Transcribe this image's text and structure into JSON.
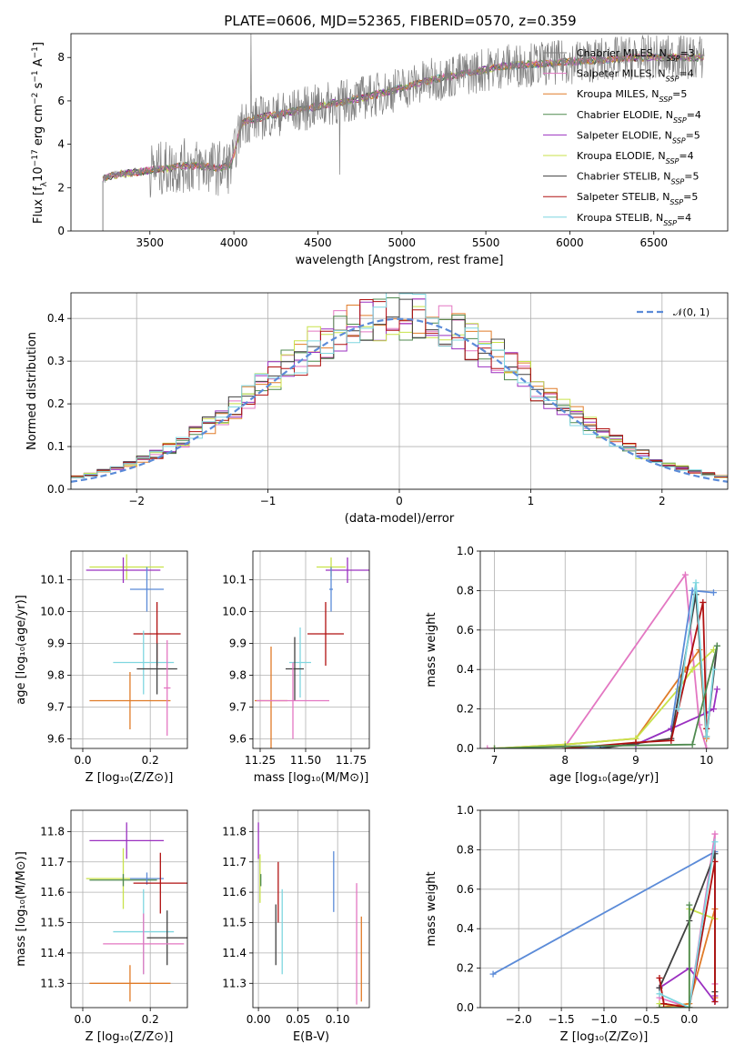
{
  "title": "PLATE=0606, MJD=52365, FIBERID=0570, z=0.359",
  "models": [
    {
      "name": "Chabrier MILES, N_SSP=3",
      "label": "Chabrier MILES, N",
      "sub": "SSP",
      "suffix": "=3",
      "color": "#808080"
    },
    {
      "name": "Salpeter MILES, N_SSP=4",
      "label": "Salpeter MILES, N",
      "sub": "SSP",
      "suffix": "=4",
      "color": "#e377c2"
    },
    {
      "name": "Kroupa MILES, N_SSP=5",
      "label": "Kroupa MILES, N",
      "sub": "SSP",
      "suffix": "=5",
      "color": "#e07b28"
    },
    {
      "name": "Chabrier ELODIE, N_SSP=4",
      "label": "Chabrier ELODIE, N",
      "sub": "SSP",
      "suffix": "=4",
      "color": "#4f8a4f"
    },
    {
      "name": "Salpeter ELODIE, N_SSP=5",
      "label": "Salpeter ELODIE, N",
      "sub": "SSP",
      "suffix": "=5",
      "color": "#9b30c0"
    },
    {
      "name": "Kroupa ELODIE, N_SSP=4",
      "label": "Kroupa ELODIE, N",
      "sub": "SSP",
      "suffix": "=4",
      "color": "#c8e24a"
    },
    {
      "name": "Chabrier STELIB, N_SSP=5",
      "label": "Chabrier STELIB, N",
      "sub": "SSP",
      "suffix": "=5",
      "color": "#404040"
    },
    {
      "name": "Salpeter STELIB, N_SSP=5",
      "label": "Salpeter STELIB, N",
      "sub": "SSP",
      "suffix": "=5",
      "color": "#b01010"
    },
    {
      "name": "Kroupa STELIB, N_SSP=4",
      "label": "Kroupa STELIB, N",
      "sub": "SSP",
      "suffix": "=4",
      "color": "#7fd6e0"
    }
  ],
  "chart_data": [
    {
      "id": "spectrum",
      "type": "line",
      "xlabel": "wavelength [Angstrom, rest frame]",
      "ylabel_pre": "Flux [f",
      "ylabel_sub": "λ",
      "ylabel_mid": "10",
      "ylabel_sup1": "−17",
      "ylabel_mid2": " erg cm",
      "ylabel_sup2": "−2",
      "ylabel_mid3": " s",
      "ylabel_sup3": "−1",
      "ylabel_mid4": " A",
      "ylabel_sup4": "−1",
      "ylabel_end": "]",
      "xlim": [
        3030,
        6940
      ],
      "ylim": [
        0,
        9.1
      ],
      "xticks": [
        3500,
        4000,
        4500,
        5000,
        5500,
        6000,
        6500
      ],
      "yticks": [
        0,
        2,
        4,
        6,
        8
      ],
      "continuum_x": [
        3220,
        3300,
        3400,
        3500,
        3600,
        3700,
        3800,
        3900,
        3980,
        4050,
        4200,
        4400,
        4600,
        4800,
        5000,
        5200,
        5400,
        5600,
        5800,
        6000,
        6200,
        6400,
        6600,
        6800
      ],
      "continuum_y": [
        2.4,
        2.6,
        2.7,
        2.8,
        2.9,
        3.0,
        3.0,
        2.9,
        3.0,
        5.0,
        5.3,
        5.6,
        5.9,
        6.2,
        6.6,
        7.0,
        7.3,
        7.6,
        7.7,
        7.8,
        7.9,
        8.0,
        8.0,
        8.0
      ]
    },
    {
      "id": "residuals",
      "type": "histogram",
      "xlabel": "(data-model)/error",
      "ylabel": "Normed distribution",
      "xlim": [
        -2.5,
        2.5
      ],
      "ylim": [
        0,
        0.46
      ],
      "xticks": [
        -2,
        -1,
        0,
        1,
        2
      ],
      "xticklabels": [
        "−2",
        "−1",
        "0",
        "1",
        "2"
      ],
      "yticks": [
        0.0,
        0.1,
        0.2,
        0.3,
        0.4
      ],
      "yticklabels": [
        "0.0",
        "0.1",
        "0.2",
        "0.3",
        "0.4"
      ],
      "legend": "𝒩(0, 1)",
      "gaussian_color": "#5b8bd8"
    },
    {
      "id": "age_vs_Z",
      "type": "errorbar",
      "xlabel": "Z [log₁₀(Z/Z⊙)]",
      "ylabel": "age  [log₁₀(age/yr)]",
      "xlim": [
        -0.035,
        0.31
      ],
      "ylim": [
        9.57,
        10.19
      ],
      "xticks": [
        0.0,
        0.2
      ],
      "yticks": [
        9.6,
        9.7,
        9.8,
        9.9,
        10.0,
        10.1
      ],
      "points": [
        {
          "x": 0.13,
          "xerr": 0.11,
          "y": 10.14,
          "yerr": 0.04,
          "color": "#c8e24a"
        },
        {
          "x": 0.12,
          "xerr": 0.11,
          "y": 10.13,
          "yerr": 0.04,
          "color": "#9b30c0"
        },
        {
          "x": 0.19,
          "xerr": 0.05,
          "y": 10.07,
          "yerr": 0.07,
          "color": "#5b8bd8"
        },
        {
          "x": 0.22,
          "xerr": 0.07,
          "y": 9.93,
          "yerr": 0.1,
          "color": "#b01010"
        },
        {
          "x": 0.18,
          "xerr": 0.09,
          "y": 9.84,
          "yerr": 0.1,
          "color": "#7fd6e0"
        },
        {
          "x": 0.22,
          "xerr": 0.06,
          "y": 9.82,
          "yerr": 0.08,
          "color": "#404040"
        },
        {
          "x": 0.14,
          "xerr": 0.12,
          "y": 9.72,
          "yerr": 0.09,
          "color": "#e07b28"
        },
        {
          "x": 0.25,
          "xerr": 0.01,
          "y": 9.76,
          "yerr": 0.15,
          "color": "#e377c2"
        }
      ]
    },
    {
      "id": "age_vs_mass",
      "type": "errorbar",
      "xlabel": "mass [log₁₀(M/M⊙)]",
      "xlim": [
        11.21,
        11.85
      ],
      "ylim": [
        9.57,
        10.19
      ],
      "xticks": [
        11.25,
        11.5,
        11.75
      ],
      "yticks": [
        9.6,
        9.7,
        9.8,
        9.9,
        10.0,
        10.1
      ],
      "points": [
        {
          "x": 11.64,
          "xerr": 0.08,
          "y": 10.14,
          "yerr": 0.03,
          "color": "#c8e24a"
        },
        {
          "x": 11.73,
          "xerr": 0.12,
          "y": 10.13,
          "yerr": 0.04,
          "color": "#9b30c0"
        },
        {
          "x": 11.64,
          "xerr": 0.01,
          "y": 10.07,
          "yerr": 0.07,
          "color": "#5b8bd8"
        },
        {
          "x": 11.61,
          "xerr": 0.1,
          "y": 9.93,
          "yerr": 0.1,
          "color": "#b01010"
        },
        {
          "x": 11.47,
          "xerr": 0.06,
          "y": 9.84,
          "yerr": 0.11,
          "color": "#7fd6e0"
        },
        {
          "x": 11.44,
          "xerr": 0.05,
          "y": 9.82,
          "yerr": 0.1,
          "color": "#404040"
        },
        {
          "x": 11.31,
          "xerr": 0.09,
          "y": 9.72,
          "yerr": 0.17,
          "color": "#e07b28"
        },
        {
          "x": 11.43,
          "xerr": 0.2,
          "y": 9.72,
          "yerr": 0.12,
          "color": "#e377c2"
        }
      ]
    },
    {
      "id": "weight_vs_age",
      "type": "line",
      "xlabel": "age  [log₁₀(age/yr)]",
      "ylabel": "mass weight",
      "xlim": [
        6.8,
        10.3
      ],
      "ylim": [
        0,
        1.0
      ],
      "xticks": [
        7,
        8,
        9,
        10
      ],
      "yticks": [
        0.0,
        0.2,
        0.4,
        0.6,
        0.8,
        1.0
      ],
      "series": [
        {
          "color": "#e377c2",
          "x": [
            6.9,
            8.0,
            9.7,
            9.9,
            10.0
          ],
          "y": [
            0.0,
            0.01,
            0.88,
            0.12,
            0.0
          ]
        },
        {
          "color": "#e07b28",
          "x": [
            7.0,
            8.0,
            9.0,
            9.7,
            9.9,
            10.0
          ],
          "y": [
            0.0,
            0.02,
            0.05,
            0.4,
            0.5,
            0.05
          ]
        },
        {
          "color": "#c8e24a",
          "x": [
            7.0,
            8.0,
            9.0,
            9.6,
            9.8,
            10.1
          ],
          "y": [
            0.0,
            0.02,
            0.05,
            0.3,
            0.4,
            0.5
          ]
        },
        {
          "color": "#5b8bd8",
          "x": [
            8.2,
            9.0,
            9.5,
            9.8,
            10.1
          ],
          "y": [
            0.0,
            0.02,
            0.1,
            0.8,
            0.79
          ]
        },
        {
          "color": "#9b30c0",
          "x": [
            9.0,
            9.5,
            10.0,
            10.1,
            10.15
          ],
          "y": [
            0.02,
            0.1,
            0.18,
            0.2,
            0.3
          ]
        },
        {
          "color": "#404040",
          "x": [
            8.5,
            9.5,
            9.85,
            10.0,
            10.15
          ],
          "y": [
            0.0,
            0.05,
            0.78,
            0.06,
            0.52
          ]
        },
        {
          "color": "#b01010",
          "x": [
            8.0,
            9.0,
            9.5,
            9.95,
            10.0
          ],
          "y": [
            0.0,
            0.03,
            0.04,
            0.74,
            0.1
          ]
        },
        {
          "color": "#7fd6e0",
          "x": [
            9.6,
            9.85,
            10.0,
            10.1
          ],
          "y": [
            0.2,
            0.84,
            0.06,
            0.4
          ]
        },
        {
          "color": "#4f8a4f",
          "x": [
            7.0,
            8.0,
            9.8,
            10.15
          ],
          "y": [
            0.0,
            0.01,
            0.02,
            0.52
          ]
        }
      ]
    },
    {
      "id": "mass_vs_Z",
      "type": "errorbar",
      "xlabel": "Z [log₁₀(Z/Z⊙)]",
      "ylabel": "mass [log₁₀(M/M⊙)]",
      "xlim": [
        -0.035,
        0.31
      ],
      "ylim": [
        11.22,
        11.87
      ],
      "xticks": [
        0.0,
        0.2
      ],
      "yticks": [
        11.3,
        11.4,
        11.5,
        11.6,
        11.7,
        11.8
      ],
      "points": [
        {
          "x": 0.13,
          "xerr": 0.11,
          "y": 11.77,
          "yerr": 0.06,
          "color": "#9b30c0"
        },
        {
          "x": 0.12,
          "xerr": 0.11,
          "y": 11.645,
          "yerr": 0.1,
          "color": "#c8e24a"
        },
        {
          "x": 0.12,
          "xerr": 0.1,
          "y": 11.64,
          "yerr": 0.02,
          "color": "#4f8a4f"
        },
        {
          "x": 0.19,
          "xerr": 0.05,
          "y": 11.645,
          "yerr": 0.02,
          "color": "#5b8bd8"
        },
        {
          "x": 0.23,
          "xerr": 0.08,
          "y": 11.63,
          "yerr": 0.1,
          "color": "#b01010"
        },
        {
          "x": 0.18,
          "xerr": 0.09,
          "y": 11.47,
          "yerr": 0.14,
          "color": "#7fd6e0"
        },
        {
          "x": 0.25,
          "xerr": 0.06,
          "y": 11.45,
          "yerr": 0.09,
          "color": "#404040"
        },
        {
          "x": 0.18,
          "xerr": 0.12,
          "y": 11.43,
          "yerr": 0.1,
          "color": "#e377c2"
        },
        {
          "x": 0.14,
          "xerr": 0.12,
          "y": 11.3,
          "yerr": 0.06,
          "color": "#e07b28"
        }
      ]
    },
    {
      "id": "mass_vs_EBV",
      "type": "errorbar",
      "xlabel": "E(B-V)",
      "xlim": [
        -0.007,
        0.14
      ],
      "ylim": [
        11.22,
        11.87
      ],
      "xticks": [
        0.0,
        0.05,
        0.1
      ],
      "xticklabels": [
        "0.00",
        "0.05",
        "0.10"
      ],
      "yticks": [
        11.3,
        11.4,
        11.5,
        11.6,
        11.7,
        11.8
      ],
      "points": [
        {
          "x": 0.0,
          "y": 11.77,
          "yerr": 0.06,
          "color": "#9b30c0"
        },
        {
          "x": 0.002,
          "y": 11.645,
          "yerr": 0.08,
          "color": "#c8e24a"
        },
        {
          "x": 0.003,
          "y": 11.64,
          "yerr": 0.02,
          "color": "#4f8a4f"
        },
        {
          "x": 0.095,
          "y": 11.635,
          "yerr": 0.1,
          "color": "#5b8bd8"
        },
        {
          "x": 0.025,
          "y": 11.6,
          "yerr": 0.1,
          "color": "#b01010"
        },
        {
          "x": 0.022,
          "y": 11.46,
          "yerr": 0.1,
          "color": "#404040"
        },
        {
          "x": 0.03,
          "y": 11.47,
          "yerr": 0.14,
          "color": "#7fd6e0"
        },
        {
          "x": 0.124,
          "y": 11.43,
          "yerr": 0.2,
          "color": "#e377c2"
        },
        {
          "x": 0.13,
          "y": 11.38,
          "yerr": 0.14,
          "color": "#e07b28"
        }
      ]
    },
    {
      "id": "weight_vs_Z",
      "type": "line",
      "xlabel": "Z [log₁₀(Z/Z⊙)]",
      "ylabel": "mass weight",
      "xlim": [
        -2.45,
        0.45
      ],
      "ylim": [
        0,
        1.0
      ],
      "xticks": [
        -2.0,
        -1.5,
        -1.0,
        -0.5,
        0.0
      ],
      "xticklabels": [
        "−2.0",
        "−1.5",
        "−1.0",
        "−0.5",
        "0.0"
      ],
      "yticks": [
        0.0,
        0.2,
        0.4,
        0.6,
        0.8,
        1.0
      ],
      "series": [
        {
          "color": "#5b8bd8",
          "x": [
            -2.3,
            0.3
          ],
          "y": [
            0.17,
            0.79
          ]
        },
        {
          "color": "#e377c2",
          "x": [
            -0.35,
            0.0,
            0.3,
            0.3
          ],
          "y": [
            0.05,
            0.0,
            0.88,
            0.12
          ]
        },
        {
          "color": "#e07b28",
          "x": [
            -0.35,
            0.0,
            0.3,
            0.3
          ],
          "y": [
            0.0,
            0.02,
            0.5,
            0.05
          ]
        },
        {
          "color": "#c8e24a",
          "x": [
            -0.35,
            0.0,
            0.0,
            0.3
          ],
          "y": [
            0.02,
            0.0,
            0.5,
            0.45
          ]
        },
        {
          "color": "#9b30c0",
          "x": [
            -0.35,
            0.0,
            0.3,
            0.3
          ],
          "y": [
            0.1,
            0.2,
            0.03,
            0.06
          ]
        },
        {
          "color": "#404040",
          "x": [
            -0.35,
            0.0,
            0.3,
            0.3
          ],
          "y": [
            0.1,
            0.44,
            0.78,
            0.08
          ]
        },
        {
          "color": "#b01010",
          "x": [
            -0.35,
            -0.3,
            0.0,
            0.3,
            0.3
          ],
          "y": [
            0.15,
            0.02,
            0.0,
            0.74,
            0.03
          ]
        },
        {
          "color": "#7fd6e0",
          "x": [
            -0.35,
            0.0,
            0.3
          ],
          "y": [
            0.07,
            0.0,
            0.84
          ]
        },
        {
          "color": "#4f8a4f",
          "x": [
            -0.35,
            0.0,
            0.0
          ],
          "y": [
            0.0,
            0.0,
            0.52
          ]
        }
      ]
    }
  ]
}
